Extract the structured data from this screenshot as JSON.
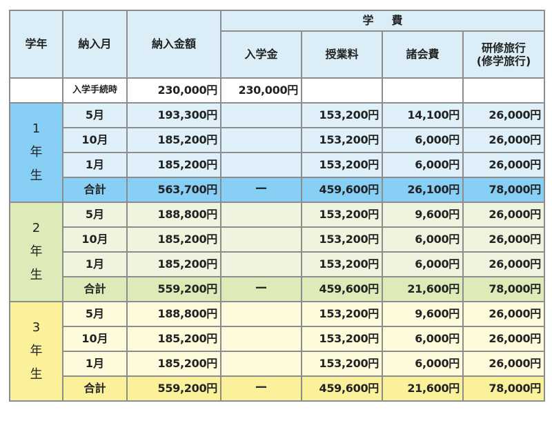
{
  "header": {
    "grade": "学年",
    "month": "納入月",
    "amount": "納入金額",
    "group": "学費",
    "cols": [
      "入学金",
      "授業料",
      "諸会費"
    ],
    "trip_line1": "研修旅行",
    "trip_line2": "(修学旅行)"
  },
  "admission": {
    "label": "入学手続時",
    "amount": "230,000円",
    "entrance": "230,000円"
  },
  "years": [
    {
      "label": [
        "1",
        "年",
        "生"
      ],
      "rows": [
        {
          "month": "5月",
          "amount": "193,300円",
          "entrance": "",
          "tuition": "153,200円",
          "fees": "14,100円",
          "trip": "26,000円"
        },
        {
          "month": "10月",
          "amount": "185,200円",
          "entrance": "",
          "tuition": "153,200円",
          "fees": "6,000円",
          "trip": "26,000円"
        },
        {
          "month": "1月",
          "amount": "185,200円",
          "entrance": "",
          "tuition": "153,200円",
          "fees": "6,000円",
          "trip": "26,000円"
        }
      ],
      "total": {
        "month": "合計",
        "amount": "563,700円",
        "entrance": "ー",
        "tuition": "459,600円",
        "fees": "26,100円",
        "trip": "78,000円"
      }
    },
    {
      "label": [
        "2",
        "年",
        "生"
      ],
      "rows": [
        {
          "month": "5月",
          "amount": "188,800円",
          "entrance": "",
          "tuition": "153,200円",
          "fees": "9,600円",
          "trip": "26,000円"
        },
        {
          "month": "10月",
          "amount": "185,200円",
          "entrance": "",
          "tuition": "153,200円",
          "fees": "6,000円",
          "trip": "26,000円"
        },
        {
          "month": "1月",
          "amount": "185,200円",
          "entrance": "",
          "tuition": "153,200円",
          "fees": "6,000円",
          "trip": "26,000円"
        }
      ],
      "total": {
        "month": "合計",
        "amount": "559,200円",
        "entrance": "ー",
        "tuition": "459,600円",
        "fees": "21,600円",
        "trip": "78,000円"
      }
    },
    {
      "label": [
        "3",
        "年",
        "生"
      ],
      "rows": [
        {
          "month": "5月",
          "amount": "188,800円",
          "entrance": "",
          "tuition": "153,200円",
          "fees": "9,600円",
          "trip": "26,000円"
        },
        {
          "month": "10月",
          "amount": "185,200円",
          "entrance": "",
          "tuition": "153,200円",
          "fees": "6,000円",
          "trip": "26,000円"
        },
        {
          "month": "1月",
          "amount": "185,200円",
          "entrance": "",
          "tuition": "153,200円",
          "fees": "6,000円",
          "trip": "26,000円"
        }
      ],
      "total": {
        "month": "合計",
        "amount": "559,200円",
        "entrance": "ー",
        "tuition": "459,600円",
        "fees": "21,600円",
        "trip": "78,000円"
      }
    }
  ],
  "colors": {
    "header_bg": "#dbeef8",
    "year1": "#87cff5",
    "year2": "#dcebb8",
    "year3": "#fbf19a",
    "border": "#8c8c8c"
  }
}
